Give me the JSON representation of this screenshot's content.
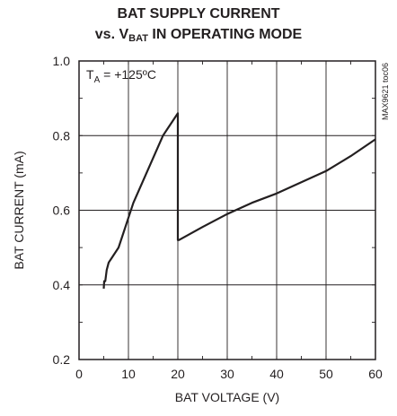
{
  "title_line1": "BAT SUPPLY CURRENT",
  "title_line2_prefix": "vs. V",
  "title_line2_sub": "BAT",
  "title_line2_suffix": " IN OPERATING MODE",
  "annotation_main": "T",
  "annotation_sub": "A",
  "annotation_rest": " = +125ºC",
  "figure_code": "MAX9621 toc06",
  "chart_data": {
    "type": "line",
    "xlabel": "BAT VOLTAGE (V)",
    "ylabel": "BAT CURRENT (mA)",
    "xlim": [
      0,
      60
    ],
    "ylim": [
      0.2,
      1.0
    ],
    "xticks": [
      0,
      10,
      20,
      30,
      40,
      50,
      60
    ],
    "yticks": [
      0.2,
      0.4,
      0.6,
      0.8,
      1.0
    ],
    "xtick_labels": [
      "0",
      "10",
      "20",
      "30",
      "40",
      "50",
      "60"
    ],
    "ytick_labels": [
      "0.2",
      "0.4",
      "0.6",
      "0.8",
      "1.0"
    ],
    "grid": true,
    "series": [
      {
        "x": [
          5.0,
          5.1,
          5.3,
          5.6,
          6.0,
          6.5,
          7.0,
          8.0,
          9.0,
          10.0,
          11.0,
          12.0,
          13.0,
          14.0,
          15.0,
          16.0,
          17.0,
          18.0,
          19.0,
          20.0,
          20.0,
          20.2,
          25.0,
          30.0,
          35.0,
          40.0,
          45.0,
          50.0,
          55.0,
          60.0
        ],
        "y": [
          0.39,
          0.41,
          0.41,
          0.44,
          0.46,
          0.47,
          0.48,
          0.5,
          0.54,
          0.58,
          0.62,
          0.65,
          0.68,
          0.71,
          0.74,
          0.77,
          0.8,
          0.82,
          0.84,
          0.86,
          0.52,
          0.52,
          0.555,
          0.59,
          0.62,
          0.645,
          0.675,
          0.705,
          0.745,
          0.79
        ]
      }
    ]
  }
}
